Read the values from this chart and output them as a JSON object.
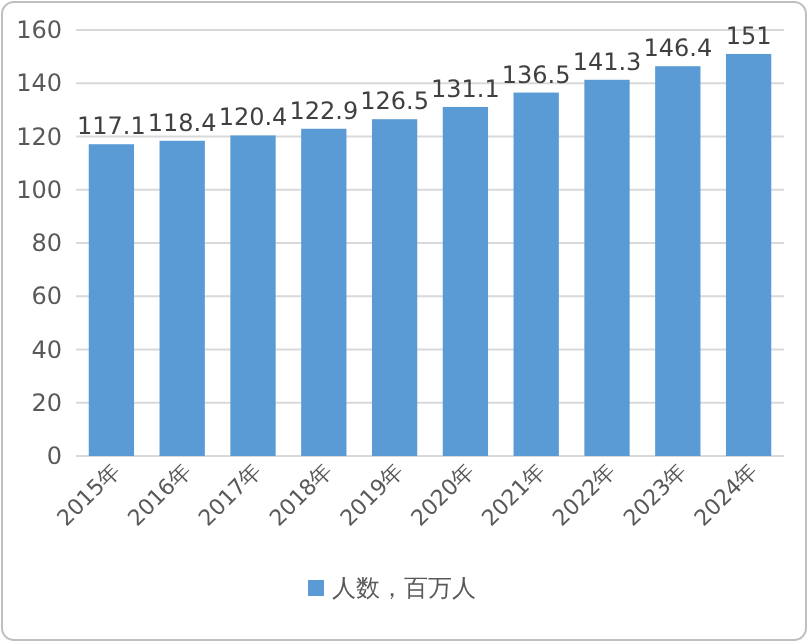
{
  "chart_data": {
    "type": "bar",
    "categories": [
      "2015年",
      "2016年",
      "2017年",
      "2018年",
      "2019年",
      "2020年",
      "2021年",
      "2022年",
      "2023年",
      "2024年"
    ],
    "series": [
      {
        "name": "人数，百万人",
        "color": "#5b9bd5",
        "values": [
          117.1,
          118.4,
          120.4,
          122.9,
          126.5,
          131.1,
          136.5,
          141.3,
          146.4,
          151
        ]
      }
    ],
    "ylim": [
      0,
      160
    ],
    "yticks": [
      0,
      20,
      40,
      60,
      80,
      100,
      120,
      140,
      160
    ],
    "grid": "y",
    "legend": "bottom",
    "data_labels": true
  }
}
